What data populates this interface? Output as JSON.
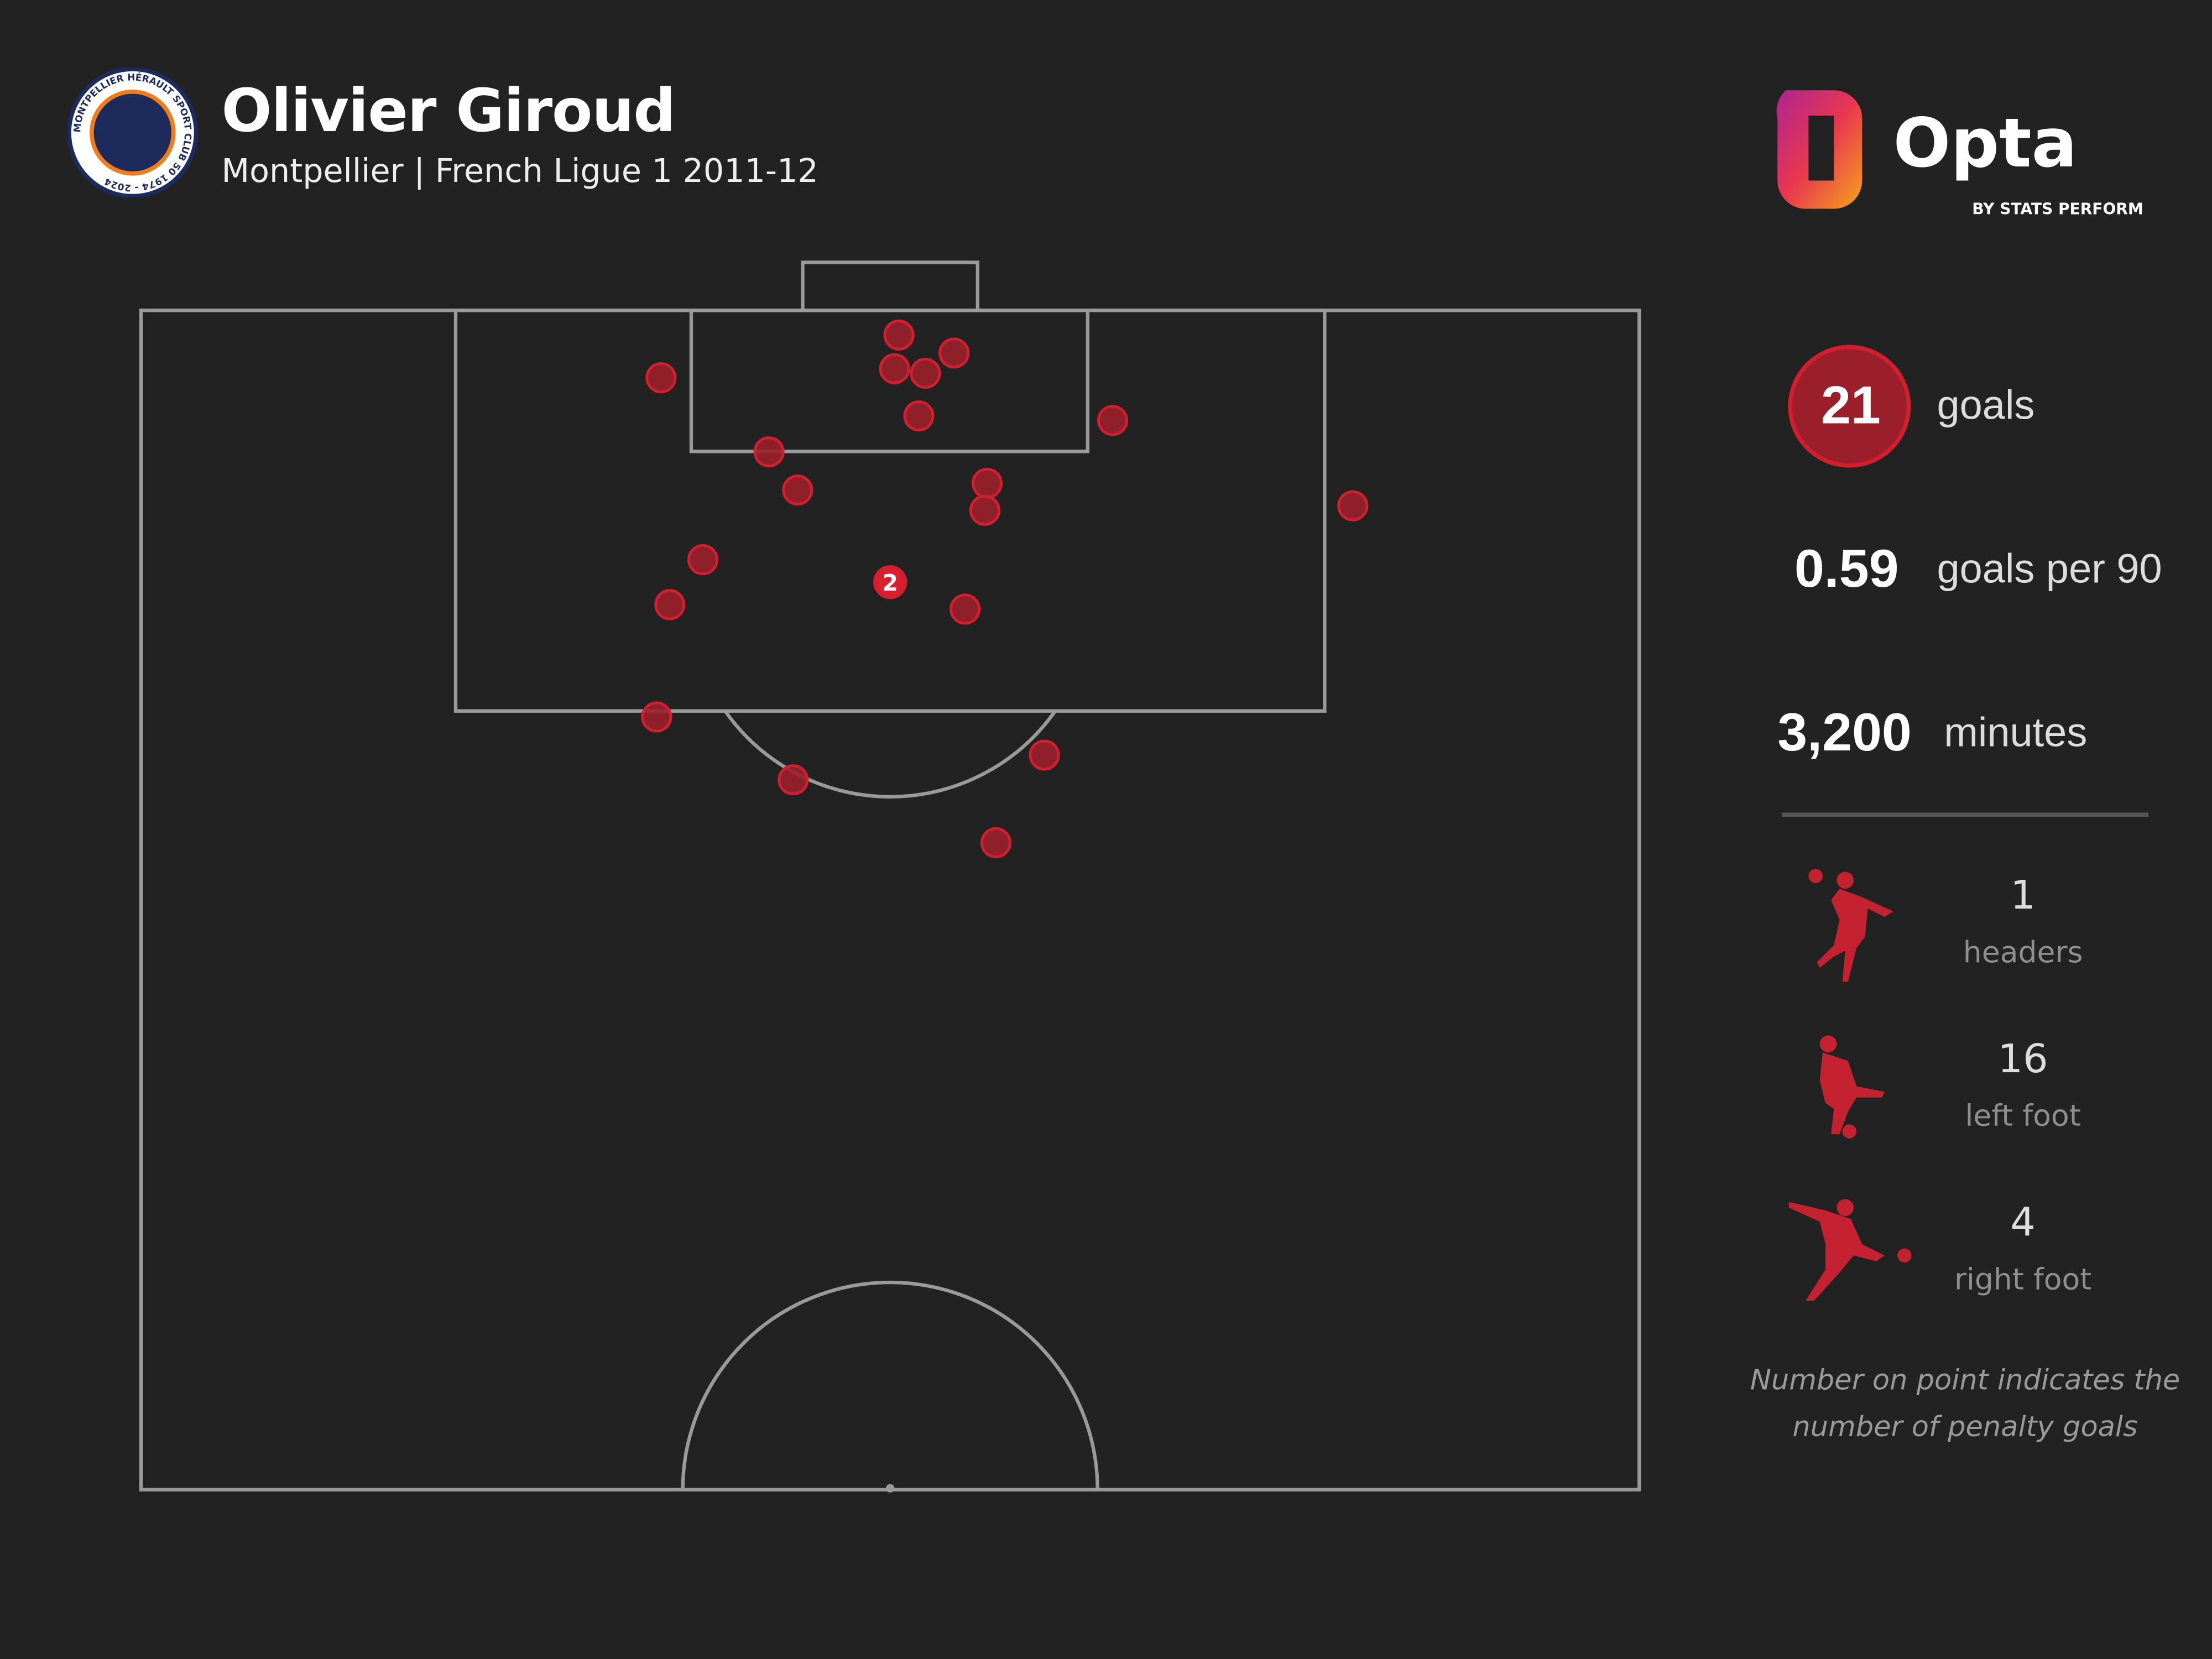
{
  "header": {
    "title": "Olivier Giroud",
    "subtitle": "Montpellier | French Ligue 1 2011-12",
    "club_badge": {
      "icon": "montpellier-50-years-badge",
      "text": "MONTPELLIER HÉRAULT SPORT CLUB 50 1974 - 2024"
    },
    "brand_logo": {
      "icon": "opta-logo",
      "text": "Opta",
      "subtext": "BY STATS PERFORM"
    }
  },
  "stats": {
    "goals_value": "21",
    "goals_label": "goals",
    "per90_value": "0.59",
    "per90_label": "goals per 90",
    "minutes_value": "3,200",
    "minutes_label": "minutes"
  },
  "body_parts": [
    {
      "icon": "header-silhouette-icon",
      "value": "1",
      "label": "headers"
    },
    {
      "icon": "left-foot-silhouette-icon",
      "value": "16",
      "label": "left foot"
    },
    {
      "icon": "right-foot-silhouette-icon",
      "value": "4",
      "label": "right foot"
    }
  ],
  "note": "Number on point indicates the number of penalty goals",
  "colors": {
    "background": "#222222",
    "pitch_lines": "#9a9a9a",
    "goal_fill": "#9b1f2a",
    "goal_stroke": "#d11f2f",
    "penalty_fill": "#d91e2e"
  },
  "chart_data": {
    "type": "scatter",
    "description_units": "metres: x across pitch from left touchline (0-68), y distance from goal line (0-52.5)",
    "xlim": [
      0,
      68
    ],
    "ylim": [
      0,
      52.5
    ],
    "points": [
      {
        "x": 34.4,
        "y": 1.1
      },
      {
        "x": 36.9,
        "y": 1.9
      },
      {
        "x": 34.2,
        "y": 2.6
      },
      {
        "x": 35.6,
        "y": 2.8
      },
      {
        "x": 23.6,
        "y": 3.0
      },
      {
        "x": 35.3,
        "y": 4.7
      },
      {
        "x": 44.1,
        "y": 4.9
      },
      {
        "x": 28.5,
        "y": 6.3
      },
      {
        "x": 29.8,
        "y": 8.0
      },
      {
        "x": 38.4,
        "y": 7.7
      },
      {
        "x": 38.3,
        "y": 8.9
      },
      {
        "x": 55.0,
        "y": 8.7
      },
      {
        "x": 25.5,
        "y": 11.1
      },
      {
        "x": 24.0,
        "y": 13.1
      },
      {
        "x": 37.4,
        "y": 13.3
      },
      {
        "x": 34.0,
        "y": 12.1,
        "penalties": 2,
        "label": "2"
      },
      {
        "x": 23.4,
        "y": 18.1
      },
      {
        "x": 41.0,
        "y": 19.8
      },
      {
        "x": 29.6,
        "y": 20.9
      },
      {
        "x": 38.8,
        "y": 23.7
      }
    ]
  }
}
